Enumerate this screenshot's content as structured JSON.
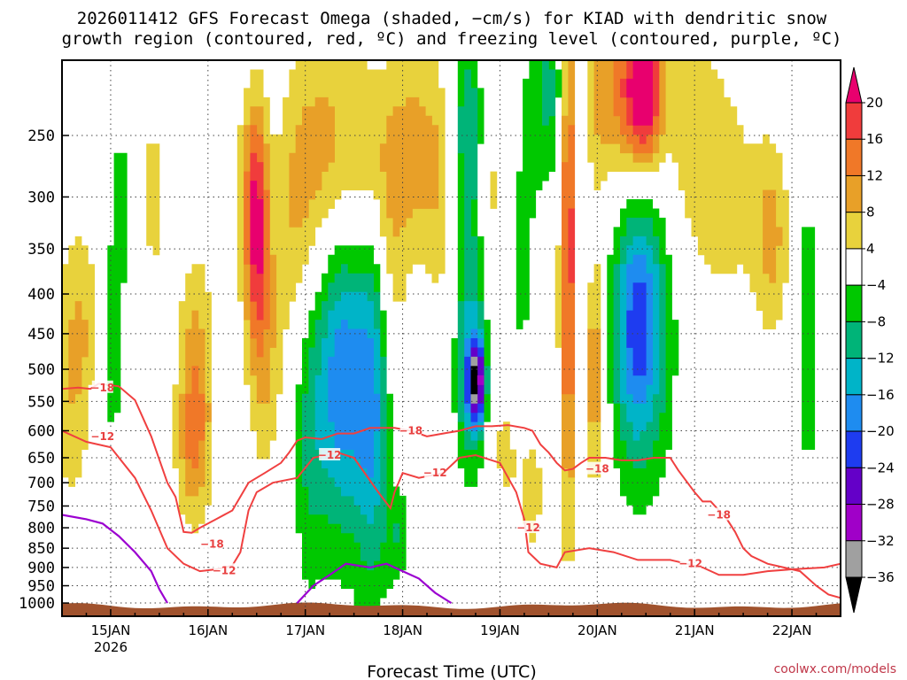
{
  "title": {
    "line1": "2026011412 GFS Forecast Omega (shaded, −cm/s) for KIAD with dendritic snow",
    "line2": "growth region (contoured, red, ºC) and freezing level (contoured, purple, ºC)"
  },
  "credit": "coolwx.com/models",
  "chart_data": {
    "type": "heatmap",
    "xlabel": "Forecast Time (UTC)",
    "ylabel": "",
    "x_range_hours": [
      -12,
      180
    ],
    "x_ticks": [
      {
        "hour": 0,
        "label": "15JAN",
        "sub": "2026"
      },
      {
        "hour": 24,
        "label": "16JAN"
      },
      {
        "hour": 48,
        "label": "17JAN"
      },
      {
        "hour": 72,
        "label": "18JAN"
      },
      {
        "hour": 96,
        "label": "19JAN"
      },
      {
        "hour": 120,
        "label": "20JAN"
      },
      {
        "hour": 144,
        "label": "21JAN"
      },
      {
        "hour": 168,
        "label": "22JAN"
      }
    ],
    "y_scale": "log-pressure",
    "y_range_hpa": [
      1040,
      200
    ],
    "y_ticks": [
      250,
      300,
      350,
      400,
      450,
      500,
      550,
      600,
      650,
      700,
      750,
      800,
      850,
      900,
      950,
      1000
    ],
    "grid": true,
    "colorbar": {
      "placement": "right",
      "labels": [
        "20",
        "16",
        "12",
        "8",
        "4",
        "−4",
        "−8",
        "−12",
        "−16",
        "−20",
        "−24",
        "−28",
        "−32",
        "−36"
      ],
      "colors": [
        "#e8006e",
        "#f03c3c",
        "#f07828",
        "#e8a028",
        "#e8d23c",
        "#ffffff",
        "#00c800",
        "#00b478",
        "#00b4c8",
        "#1e8cf0",
        "#1e3cf0",
        "#6400c8",
        "#a000c8",
        "#a0a0a0",
        "#000000"
      ]
    },
    "omega_field": [
      {
        "t": -10,
        "p": 520,
        "tw": 4,
        "pw": 0.28,
        "v": 7
      },
      {
        "t": -6,
        "p": 430,
        "tw": 3,
        "pw": 0.2,
        "v": 5
      },
      {
        "t": 0,
        "p": 480,
        "tw": 3,
        "pw": 0.2,
        "v": -7
      },
      {
        "t": 3,
        "p": 300,
        "tw": 3,
        "pw": 0.2,
        "v": -6
      },
      {
        "t": 10,
        "p": 300,
        "tw": 4,
        "pw": 0.3,
        "v": 5
      },
      {
        "t": 21,
        "p": 520,
        "tw": 3,
        "pw": 0.25,
        "v": 11
      },
      {
        "t": 20,
        "p": 640,
        "tw": 3,
        "pw": 0.15,
        "v": 6
      },
      {
        "t": 33,
        "p": 300,
        "tw": 3,
        "pw": 0.2,
        "v": 5
      },
      {
        "t": 36,
        "p": 320,
        "tw": 2,
        "pw": 0.25,
        "v": 18
      },
      {
        "t": 38,
        "p": 480,
        "tw": 3,
        "pw": 0.25,
        "v": 8
      },
      {
        "t": 46,
        "p": 310,
        "tw": 4,
        "pw": 0.3,
        "v": 8
      },
      {
        "t": 49,
        "p": 600,
        "tw": 3,
        "pw": 0.35,
        "v": -8
      },
      {
        "t": 54,
        "p": 260,
        "tw": 5,
        "pw": 0.25,
        "v": 9
      },
      {
        "t": 56,
        "p": 520,
        "tw": 4,
        "pw": 0.3,
        "v": -12
      },
      {
        "t": 60,
        "p": 500,
        "tw": 5,
        "pw": 0.4,
        "v": -9
      },
      {
        "t": 65,
        "p": 540,
        "tw": 3,
        "pw": 0.4,
        "v": -13
      },
      {
        "t": 63,
        "p": 280,
        "tw": 4,
        "pw": 0.25,
        "v": 8
      },
      {
        "t": 69,
        "p": 380,
        "tw": 3,
        "pw": 0.3,
        "v": 7
      },
      {
        "t": 71,
        "p": 820,
        "tw": 2,
        "pw": 0.1,
        "v": -7
      },
      {
        "t": 74,
        "p": 260,
        "tw": 5,
        "pw": 0.2,
        "v": 9
      },
      {
        "t": 82,
        "p": 300,
        "tw": 4,
        "pw": 0.3,
        "v": 6
      },
      {
        "t": 88,
        "p": 250,
        "tw": 3,
        "pw": 0.25,
        "v": -13
      },
      {
        "t": 89,
        "p": 480,
        "tw": 3,
        "pw": 0.25,
        "v": -15
      },
      {
        "t": 90,
        "p": 520,
        "tw": 1.5,
        "pw": 0.08,
        "v": -26
      },
      {
        "t": 94,
        "p": 300,
        "tw": 3,
        "pw": 0.3,
        "v": 6
      },
      {
        "t": 97,
        "p": 620,
        "tw": 3,
        "pw": 0.2,
        "v": 5
      },
      {
        "t": 101,
        "p": 380,
        "tw": 3,
        "pw": 0.3,
        "v": -6
      },
      {
        "t": 104,
        "p": 700,
        "tw": 3,
        "pw": 0.25,
        "v": 5
      },
      {
        "t": 108,
        "p": 220,
        "tw": 4,
        "pw": 0.2,
        "v": -9
      },
      {
        "t": 113,
        "p": 350,
        "tw": 1.5,
        "pw": 0.55,
        "v": 21
      },
      {
        "t": 116,
        "p": 350,
        "tw": 2,
        "pw": 0.5,
        "v": -7
      },
      {
        "t": 119,
        "p": 500,
        "tw": 2,
        "pw": 0.25,
        "v": 14
      },
      {
        "t": 118,
        "p": 230,
        "tw": 3,
        "pw": 0.25,
        "v": 6
      },
      {
        "t": 127,
        "p": 220,
        "tw": 5,
        "pw": 0.2,
        "v": 14
      },
      {
        "t": 132,
        "p": 220,
        "tw": 3,
        "pw": 0.15,
        "v": 19
      },
      {
        "t": 131,
        "p": 450,
        "tw": 6,
        "pw": 0.35,
        "v": -9
      },
      {
        "t": 130,
        "p": 440,
        "tw": 4,
        "pw": 0.25,
        "v": -14
      },
      {
        "t": 143,
        "p": 240,
        "tw": 5,
        "pw": 0.25,
        "v": 6
      },
      {
        "t": 152,
        "p": 300,
        "tw": 6,
        "pw": 0.25,
        "v": 6
      },
      {
        "t": 163,
        "p": 340,
        "tw": 3,
        "pw": 0.2,
        "v": 9
      },
      {
        "t": 172,
        "p": 450,
        "tw": 2,
        "pw": 0.3,
        "v": -8
      }
    ],
    "dgz_contours": [
      {
        "label": "−18",
        "points": [
          [
            -12,
            530
          ],
          [
            -8,
            528
          ],
          [
            -5,
            530
          ],
          [
            -3,
            522
          ],
          [
            2,
            526
          ],
          [
            6,
            548
          ],
          [
            10,
            610
          ],
          [
            14,
            700
          ],
          [
            16,
            730
          ],
          [
            18,
            810
          ],
          [
            20,
            812
          ],
          [
            22,
            800
          ],
          [
            24,
            790
          ],
          [
            26,
            780
          ],
          [
            30,
            760
          ],
          [
            34,
            700
          ],
          [
            38,
            680
          ],
          [
            42,
            660
          ],
          [
            44,
            640
          ],
          [
            46,
            618
          ],
          [
            48,
            612
          ],
          [
            52,
            615
          ],
          [
            56,
            605
          ],
          [
            60,
            605
          ],
          [
            62,
            600
          ],
          [
            64,
            595
          ],
          [
            70,
            595
          ],
          [
            74,
            600
          ],
          [
            78,
            610
          ],
          [
            82,
            605
          ],
          [
            86,
            600
          ],
          [
            90,
            592
          ],
          [
            94,
            592
          ],
          [
            98,
            590
          ],
          [
            102,
            595
          ],
          [
            104,
            600
          ],
          [
            106,
            625
          ],
          [
            108,
            640
          ],
          [
            110,
            660
          ],
          [
            112,
            675
          ],
          [
            114,
            672
          ],
          [
            116,
            660
          ],
          [
            118,
            650
          ],
          [
            122,
            650
          ],
          [
            126,
            655
          ],
          [
            130,
            655
          ],
          [
            134,
            650
          ],
          [
            138,
            650
          ],
          [
            140,
            675
          ],
          [
            144,
            720
          ],
          [
            146,
            740
          ],
          [
            148,
            740
          ],
          [
            150,
            760
          ],
          [
            152,
            780
          ],
          [
            154,
            810
          ],
          [
            156,
            850
          ],
          [
            158,
            870
          ],
          [
            162,
            890
          ],
          [
            166,
            900
          ],
          [
            170,
            910
          ],
          [
            174,
            950
          ],
          [
            177,
            975
          ],
          [
            180,
            985
          ]
        ],
        "labels_at": [
          [
            -2,
            528
          ],
          [
            74,
            600
          ],
          [
            120,
            672
          ],
          [
            150,
            770
          ],
          [
            25,
            840
          ]
        ]
      },
      {
        "label": "−12",
        "points": [
          [
            -12,
            600
          ],
          [
            -6,
            620
          ],
          [
            0,
            630
          ],
          [
            6,
            690
          ],
          [
            10,
            760
          ],
          [
            14,
            850
          ],
          [
            18,
            890
          ],
          [
            22,
            910
          ],
          [
            26,
            905
          ],
          [
            30,
            895
          ],
          [
            32,
            860
          ],
          [
            34,
            760
          ],
          [
            36,
            720
          ],
          [
            40,
            700
          ],
          [
            46,
            690
          ],
          [
            50,
            650
          ],
          [
            56,
            640
          ],
          [
            60,
            650
          ],
          [
            66,
            720
          ],
          [
            69,
            755
          ],
          [
            70,
            720
          ],
          [
            72,
            680
          ],
          [
            76,
            690
          ],
          [
            82,
            680
          ],
          [
            86,
            650
          ],
          [
            90,
            645
          ],
          [
            96,
            660
          ],
          [
            100,
            720
          ],
          [
            102,
            780
          ],
          [
            103,
            860
          ],
          [
            106,
            890
          ],
          [
            110,
            900
          ],
          [
            112,
            860
          ],
          [
            118,
            850
          ],
          [
            124,
            860
          ],
          [
            130,
            880
          ],
          [
            138,
            880
          ],
          [
            146,
            900
          ],
          [
            150,
            920
          ],
          [
            156,
            920
          ],
          [
            162,
            910
          ],
          [
            168,
            905
          ],
          [
            176,
            900
          ],
          [
            180,
            890
          ]
        ],
        "labels_at": [
          [
            -2,
            610
          ],
          [
            54,
            645
          ],
          [
            80,
            680
          ],
          [
            103,
            800
          ],
          [
            28,
            908
          ],
          [
            143,
            890
          ]
        ]
      }
    ],
    "freezing_level": [
      {
        "label": "0",
        "points": [
          [
            -12,
            770
          ],
          [
            -6,
            780
          ],
          [
            -2,
            790
          ],
          [
            2,
            820
          ],
          [
            6,
            860
          ],
          [
            10,
            910
          ],
          [
            12,
            960
          ],
          [
            14,
            1000
          ]
        ]
      },
      {
        "label": "0",
        "points": [
          [
            46,
            1000
          ],
          [
            50,
            950
          ],
          [
            54,
            920
          ],
          [
            58,
            890
          ],
          [
            64,
            900
          ],
          [
            68,
            890
          ],
          [
            72,
            910
          ],
          [
            76,
            930
          ],
          [
            80,
            970
          ],
          [
            84,
            1000
          ]
        ]
      }
    ],
    "surface": "ground below ~1000 hPa"
  }
}
